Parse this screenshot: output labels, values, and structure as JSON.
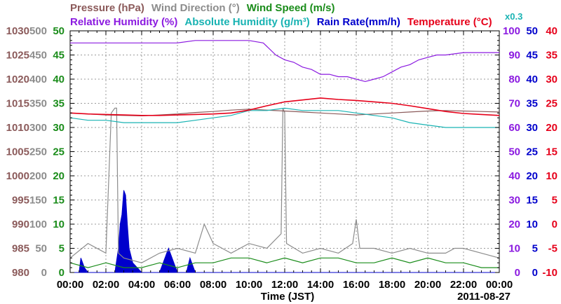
{
  "chart_data": {
    "type": "line",
    "legend": {
      "row1": [
        {
          "label": "Pressure (hPa)",
          "color": "#8b5a5a"
        },
        {
          "label": "Wind Direction (°)",
          "color": "#8c8c8c"
        },
        {
          "label": "Wind Speed (m/s)",
          "color": "#1a8c1a"
        }
      ],
      "row2": [
        {
          "label": "Relative Humidity (%)",
          "color": "#8b1ae0"
        },
        {
          "label": "Absolute Humidity (g/m³)",
          "color": "#19b3b3"
        },
        {
          "label": "Rain Rate(mm/h)",
          "color": "#0000cc"
        },
        {
          "label": "Temperature (°C)",
          "color": "#e6001a"
        }
      ],
      "multiplier": "x0.3",
      "multiplier_color": "#19b3b3"
    },
    "xlabel": "Time (JST)",
    "date_label": "2011-08-27",
    "x_ticks": [
      "00:00",
      "02:00",
      "04:00",
      "06:00",
      "08:00",
      "10:00",
      "12:00",
      "14:00",
      "16:00",
      "18:00",
      "20:00",
      "22:00",
      "00:00"
    ],
    "axes": {
      "pressure": {
        "color": "#8b5a5a",
        "ticks": [
          "980",
          "985",
          "990",
          "995",
          "1000",
          "1005",
          "1010",
          "1015",
          "1020",
          "1025",
          "1030"
        ],
        "range": [
          980,
          1030
        ]
      },
      "wind_direction": {
        "color": "#8c8c8c",
        "ticks": [
          "0",
          "50",
          "100",
          "150",
          "200",
          "250",
          "300",
          "350",
          "400",
          "450",
          "500"
        ],
        "range": [
          0,
          500
        ]
      },
      "wind_speed": {
        "color": "#1a8c1a",
        "ticks": [
          "0",
          "5",
          "10",
          "15",
          "20",
          "25",
          "30",
          "35",
          "40",
          "45",
          "50"
        ],
        "range": [
          0,
          50
        ]
      },
      "humidity": {
        "color": "#8b1ae0",
        "ticks": [
          "0",
          "10",
          "20",
          "30",
          "40",
          "50",
          "60",
          "70",
          "80",
          "90",
          "100"
        ],
        "range": [
          0,
          100
        ]
      },
      "rain_rate": {
        "color": "#0000cc",
        "ticks": [
          "0",
          "5",
          "10",
          "15",
          "20",
          "25",
          "30",
          "35",
          "40",
          "45",
          "50"
        ],
        "range": [
          0,
          50
        ]
      },
      "temperature": {
        "color": "#e6001a",
        "ticks": [
          "-10",
          "-5",
          "0",
          "5",
          "10",
          "15",
          "20",
          "25",
          "30",
          "35",
          "40"
        ],
        "range": [
          -10,
          40
        ]
      }
    },
    "series": [
      {
        "name": "Pressure (hPa)",
        "color": "#8b5a5a",
        "axis": "pressure",
        "x": [
          0,
          1,
          2,
          3,
          4,
          5,
          6,
          7,
          8,
          9,
          10,
          11,
          12,
          13,
          14,
          15,
          16,
          17,
          18,
          19,
          20,
          21,
          22,
          23,
          24
        ],
        "y": [
          1013.0,
          1012.8,
          1012.6,
          1012.5,
          1012.4,
          1012.6,
          1012.8,
          1013.1,
          1013.3,
          1013.6,
          1013.8,
          1013.6,
          1013.4,
          1013.2,
          1013.0,
          1012.8,
          1012.6,
          1012.8,
          1013.0,
          1013.2,
          1013.4,
          1013.5,
          1013.4,
          1013.3,
          1013.2
        ]
      },
      {
        "name": "Temperature (°C)",
        "color": "#e6001a",
        "axis": "temperature",
        "x": [
          0,
          1,
          2,
          3,
          4,
          5,
          6,
          7,
          8,
          9,
          10,
          11,
          12,
          13,
          14,
          15,
          16,
          17,
          18,
          19,
          20,
          21,
          22,
          23,
          24
        ],
        "y": [
          23.0,
          22.8,
          22.7,
          22.6,
          22.5,
          22.5,
          22.6,
          22.7,
          22.8,
          23.0,
          23.6,
          24.5,
          25.3,
          25.7,
          26.1,
          25.8,
          25.6,
          25.3,
          25.0,
          24.5,
          23.9,
          23.3,
          22.9,
          22.7,
          22.5
        ]
      },
      {
        "name": "Relative Humidity (%)",
        "color": "#8b1ae0",
        "axis": "humidity",
        "x": [
          0,
          3,
          6,
          7,
          9,
          10,
          10.8,
          11.5,
          12,
          12.5,
          13,
          13.5,
          14,
          14.5,
          15,
          15.5,
          16,
          16.5,
          17,
          17.5,
          18,
          18.5,
          19,
          19.5,
          20,
          20.5,
          21,
          22,
          23,
          24
        ],
        "y": [
          95,
          95,
          95,
          96,
          96,
          96,
          95,
          90,
          88,
          87,
          85,
          84,
          82,
          82,
          81,
          81,
          80,
          79,
          80,
          81,
          83,
          85,
          86,
          88,
          89,
          90,
          90,
          91,
          91,
          91
        ]
      },
      {
        "name": "Absolute Humidity (g/m³)",
        "color": "#19b3b3",
        "axis": "humidity",
        "x": [
          0,
          1,
          2,
          3,
          4,
          5,
          6,
          7,
          8,
          9,
          10,
          11,
          12,
          13,
          14,
          15,
          16,
          17,
          18,
          19,
          20,
          21,
          22,
          23,
          24
        ],
        "y": [
          64,
          63,
          63,
          62,
          62,
          62,
          62,
          63,
          64,
          65,
          67,
          67,
          68,
          67,
          67,
          67,
          66,
          65,
          64,
          62,
          61,
          60,
          60,
          60,
          60
        ]
      },
      {
        "name": "Wind Direction (°)",
        "color": "#8c8c8c",
        "axis": "wind_direction",
        "x": [
          0,
          1,
          2,
          2.3,
          2.5,
          2.6,
          2.7,
          3,
          4,
          5,
          6,
          7,
          7.5,
          8,
          8.5,
          9,
          10,
          11,
          11.8,
          11.9,
          12,
          12.1,
          13,
          14,
          15,
          15.8,
          16,
          16.2,
          17,
          18,
          19,
          20,
          21,
          21.5,
          22,
          23,
          24
        ],
        "y": [
          30,
          60,
          40,
          330,
          340,
          340,
          40,
          30,
          20,
          40,
          50,
          40,
          100,
          60,
          50,
          40,
          60,
          50,
          80,
          340,
          330,
          60,
          40,
          50,
          40,
          60,
          110,
          50,
          50,
          40,
          50,
          40,
          40,
          50,
          50,
          40,
          30
        ]
      },
      {
        "name": "Wind Speed (m/s)",
        "color": "#1a8c1a",
        "axis": "wind_speed",
        "x": [
          0,
          1,
          2,
          3,
          4,
          5,
          6,
          7,
          8,
          9,
          10,
          11,
          12,
          13,
          14,
          15,
          16,
          17,
          18,
          19,
          20,
          21,
          22,
          23,
          24
        ],
        "y": [
          2,
          1,
          2,
          1,
          1,
          2,
          1,
          2,
          2,
          3,
          3,
          2,
          3,
          2,
          3,
          3,
          2,
          2,
          3,
          2,
          3,
          2,
          2,
          1,
          1
        ]
      },
      {
        "name": "Rain Rate(mm/h)",
        "color": "#0000cc",
        "axis": "rain_rate",
        "style": "area",
        "x": [
          0,
          0.5,
          0.6,
          0.8,
          1.0,
          2.5,
          2.7,
          2.8,
          2.9,
          3.0,
          3.1,
          3.2,
          3.3,
          3.5,
          4.0,
          5.0,
          5.3,
          5.5,
          6.0,
          6.5,
          6.7,
          7.0,
          24
        ],
        "y": [
          0,
          0,
          3,
          1,
          0,
          0,
          5,
          10,
          12,
          17,
          16,
          10,
          5,
          2,
          0,
          0,
          3,
          5,
          0,
          0,
          3,
          0,
          0
        ]
      }
    ],
    "xlim": [
      0,
      24
    ],
    "grid": true
  }
}
